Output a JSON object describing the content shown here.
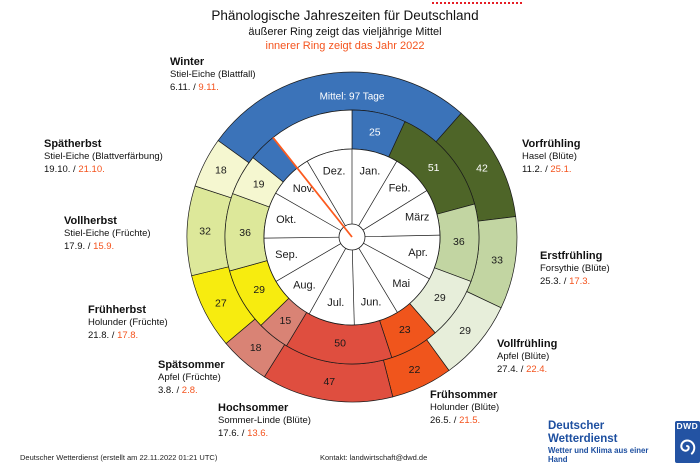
{
  "header": {
    "title": "Phänologische Jahreszeiten für Deutschland",
    "subtitle_outer": "äußerer Ring zeigt das vieljährige Mittel",
    "subtitle_inner": "innerer Ring zeigt das Jahr 2022"
  },
  "colors": {
    "highlight_orange": "#f4531d",
    "marker_line_orange": "#fc5a1e",
    "dotted_line_red": "#e61e25",
    "dwd_blue": "#1d4fa0",
    "dwd_mark_blue": "#2353a3",
    "stroke": "#1a1a1a"
  },
  "chart_data": {
    "type": "pie",
    "variant": "phenological clock: two concentric rings over a month dial",
    "center_label_note": "Mittel: 97 Tage",
    "current_date_marker_day_of_year": 326,
    "months": [
      {
        "label": "Jan.",
        "days": 31
      },
      {
        "label": "Feb.",
        "days": 28
      },
      {
        "label": "März",
        "days": 31
      },
      {
        "label": "Apr.",
        "days": 30
      },
      {
        "label": "Mai",
        "days": 31
      },
      {
        "label": "Jun.",
        "days": 30
      },
      {
        "label": "Jul.",
        "days": 31
      },
      {
        "label": "Aug.",
        "days": 31
      },
      {
        "label": "Sep.",
        "days": 30
      },
      {
        "label": "Okt.",
        "days": 31
      },
      {
        "label": "Nov.",
        "days": 30
      },
      {
        "label": "Dez.",
        "days": 31
      }
    ],
    "outer_ring": {
      "meaning": "vieljähriges Mittel",
      "start_day_of_year": 310,
      "segments": [
        {
          "season": "Winter",
          "days": 97,
          "label": "",
          "note": "Mittel: 97 Tage",
          "color": "#3b73b9",
          "label_color": "#ffffff"
        },
        {
          "season": "Vorfrühling",
          "days": 42,
          "label": "42",
          "color": "#4e6528",
          "label_color": "#ffffff"
        },
        {
          "season": "Erstfrühling",
          "days": 33,
          "label": "33",
          "color": "#c2d5a2",
          "label_color": "#1a1a1a"
        },
        {
          "season": "Vollfrühling",
          "days": 29,
          "label": "29",
          "color": "#e7eeda",
          "label_color": "#1a1a1a"
        },
        {
          "season": "Frühsommer",
          "days": 22,
          "label": "22",
          "color": "#f0551c",
          "label_color": "#1a1a1a"
        },
        {
          "season": "Hochsommer",
          "days": 47,
          "label": "47",
          "color": "#df4e3f",
          "label_color": "#1a1a1a"
        },
        {
          "season": "Spätsommer",
          "days": 18,
          "label": "18",
          "color": "#d98375",
          "label_color": "#1a1a1a"
        },
        {
          "season": "Frühherbst",
          "days": 27,
          "label": "27",
          "color": "#f7ec0f",
          "label_color": "#1a1a1a"
        },
        {
          "season": "Vollherbst",
          "days": 32,
          "label": "32",
          "color": "#dde89a",
          "label_color": "#1a1a1a"
        },
        {
          "season": "Spätherbst",
          "days": 18,
          "label": "18",
          "color": "#f5f7d0",
          "label_color": "#1a1a1a"
        }
      ]
    },
    "inner_ring": {
      "meaning": "Jahr 2022",
      "start_day_of_year": 0,
      "segments": [
        {
          "season": "Winter",
          "days": 25,
          "label": "25",
          "color": "#3b73b9",
          "label_color": "#ffffff"
        },
        {
          "season": "Vorfrühling",
          "days": 51,
          "label": "51",
          "color": "#4e6528",
          "label_color": "#ffffff"
        },
        {
          "season": "Erstfrühling",
          "days": 36,
          "label": "36",
          "color": "#c2d5a2",
          "label_color": "#1a1a1a"
        },
        {
          "season": "Vollfrühling",
          "days": 29,
          "label": "29",
          "color": "#e7eeda",
          "label_color": "#1a1a1a"
        },
        {
          "season": "Frühsommer",
          "days": 23,
          "label": "23",
          "color": "#f0551c",
          "label_color": "#1a1a1a"
        },
        {
          "season": "Hochsommer",
          "days": 50,
          "label": "50",
          "color": "#df4e3f",
          "label_color": "#1a1a1a"
        },
        {
          "season": "Spätsommer",
          "days": 15,
          "label": "15",
          "color": "#d98375",
          "label_color": "#1a1a1a"
        },
        {
          "season": "Frühherbst",
          "days": 29,
          "label": "29",
          "color": "#f7ec0f",
          "label_color": "#1a1a1a"
        },
        {
          "season": "Vollherbst",
          "days": 36,
          "label": "36",
          "color": "#dde89a",
          "label_color": "#1a1a1a"
        },
        {
          "season": "Spätherbst",
          "days": 19,
          "label": "19",
          "color": "#f5f7d0",
          "label_color": "#1a1a1a"
        },
        {
          "season": "Winter",
          "days": 13,
          "label": "",
          "color": "#3b73b9",
          "label_color": "#ffffff"
        },
        {
          "season": "",
          "days": 39,
          "label": "",
          "color": "#ffffff",
          "label_color": "#1a1a1a"
        }
      ]
    },
    "season_annotations": [
      {
        "season": "Winter",
        "plant": "Stiel-Eiche (Blattfall)",
        "date_mittel": "6.11.",
        "date_2022": "9.11."
      },
      {
        "season": "Vorfrühling",
        "plant": "Hasel (Blüte)",
        "date_mittel": "11.2.",
        "date_2022": "25.1."
      },
      {
        "season": "Erstfrühling",
        "plant": "Forsythie (Blüte)",
        "date_mittel": "25.3.",
        "date_2022": "17.3."
      },
      {
        "season": "Vollfrühling",
        "plant": "Apfel (Blüte)",
        "date_mittel": "27.4.",
        "date_2022": "22.4."
      },
      {
        "season": "Frühsommer",
        "plant": "Holunder (Blüte)",
        "date_mittel": "26.5.",
        "date_2022": "21.5."
      },
      {
        "season": "Hochsommer",
        "plant": "Sommer-Linde (Blüte)",
        "date_mittel": "17.6.",
        "date_2022": "13.6."
      },
      {
        "season": "Spätsommer",
        "plant": "Apfel (Früchte)",
        "date_mittel": "3.8.",
        "date_2022": "2.8."
      },
      {
        "season": "Frühherbst",
        "plant": "Holunder (Früchte)",
        "date_mittel": "21.8.",
        "date_2022": "17.8."
      },
      {
        "season": "Vollherbst",
        "plant": "Stiel-Eiche (Früchte)",
        "date_mittel": "17.9.",
        "date_2022": "15.9."
      },
      {
        "season": "Spätherbst",
        "plant": "Stiel-Eiche (Blattverfärbung)",
        "date_mittel": "19.10.",
        "date_2022": "21.10."
      }
    ]
  },
  "footer": {
    "left": "Deutscher Wetterdienst (erstellt am 22.11.2022 01:21 UTC)",
    "contact": "Kontakt: landwirtschaft@dwd.de"
  },
  "logo": {
    "name": "Deutscher Wetterdienst",
    "tagline": "Wetter und Klima aus einer Hand",
    "acronym": "DWD"
  }
}
